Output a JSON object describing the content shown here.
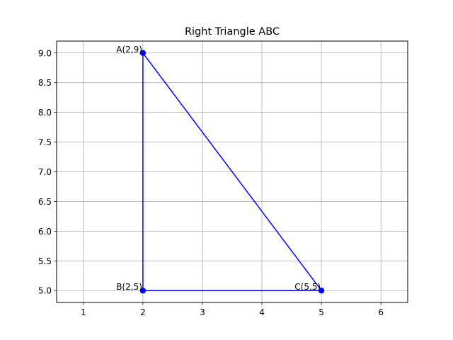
{
  "chart_data": {
    "type": "line",
    "title": "Right Triangle ABC",
    "xlabel": "",
    "ylabel": "",
    "xlim": [
      0.55,
      6.45
    ],
    "ylim": [
      4.8,
      9.2
    ],
    "xticks": [
      1,
      2,
      3,
      4,
      5,
      6
    ],
    "yticks": [
      5.0,
      5.5,
      6.0,
      6.5,
      7.0,
      7.5,
      8.0,
      8.5,
      9.0
    ],
    "xtick_labels": [
      "1",
      "2",
      "3",
      "4",
      "5",
      "6"
    ],
    "ytick_labels": [
      "5.0",
      "5.5",
      "6.0",
      "6.5",
      "7.0",
      "7.5",
      "8.0",
      "8.5",
      "9.0"
    ],
    "grid": true,
    "legend": "none",
    "series": [
      {
        "color": "#0000ff",
        "marker": "circle",
        "closed": true,
        "points": [
          {
            "x": 2,
            "y": 9,
            "label": "A(2,9)"
          },
          {
            "x": 2,
            "y": 5,
            "label": "B(2,5)"
          },
          {
            "x": 5,
            "y": 5,
            "label": "C(5,5)"
          }
        ]
      }
    ]
  },
  "colors": {
    "series": "#0000ff",
    "grid": "#b0b0b0",
    "axes": "#000000"
  }
}
